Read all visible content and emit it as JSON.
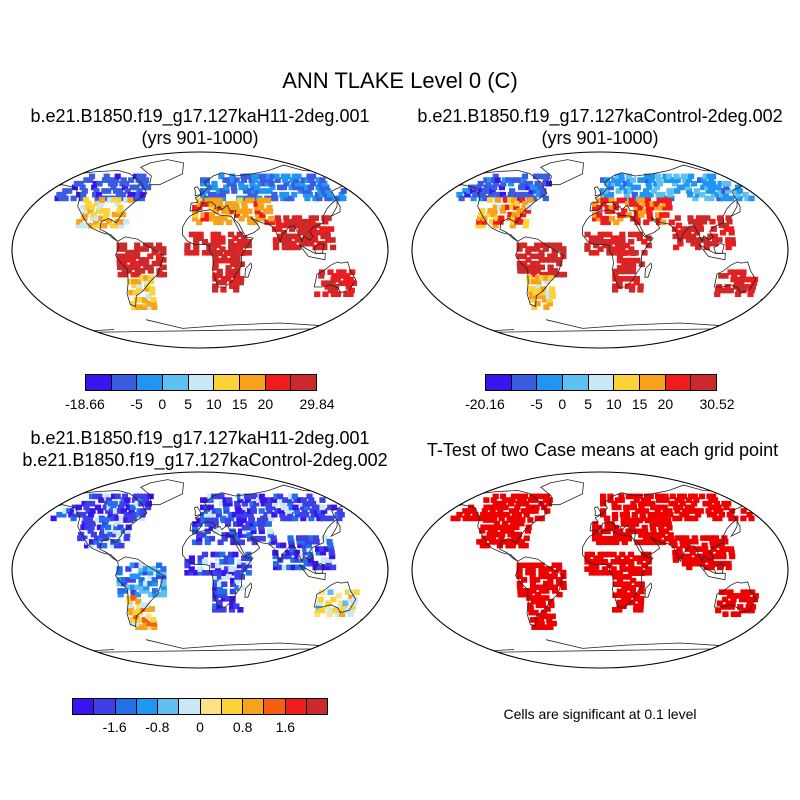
{
  "figure_title": "ANN TLAKE Level 0 (C)",
  "colors": {
    "case_scale": [
      "#3a14ef",
      "#3a5ce0",
      "#1e96f2",
      "#5ec2f0",
      "#c9e8f5",
      "#fcd23a",
      "#f7a21b",
      "#ee1c1c",
      "#cc2a2a"
    ],
    "diff_scale": [
      "#3a14ef",
      "#3e40e6",
      "#2470e8",
      "#1e96f2",
      "#62bdf0",
      "#c9e8f5",
      "#fde283",
      "#fcd23a",
      "#f7a21b",
      "#f45f12",
      "#ee1c1c",
      "#cc2a2a"
    ],
    "significant": "#ee0000",
    "land_outline": "#222222"
  },
  "panels": [
    {
      "id": "case1",
      "title_line1": "b.e21.B1850.f19_g17.127kaH11-2deg.001",
      "title_line2": "(yrs 901-1000)",
      "colorbar": {
        "labels": [
          "-18.66",
          "-5",
          "0",
          "5",
          "10",
          "15",
          "20",
          "29.84"
        ]
      }
    },
    {
      "id": "case2",
      "title_line1": "b.e21.B1850.f19_g17.127kaControl-2deg.002",
      "title_line2": "(yrs 901-1000)",
      "colorbar": {
        "labels": [
          "-20.16",
          "-5",
          "0",
          "5",
          "10",
          "15",
          "20",
          "30.52"
        ]
      }
    },
    {
      "id": "difference",
      "title_line1": "b.e21.B1850.f19_g17.127kaH11-2deg.001",
      "title_line2": "b.e21.B1850.f19_g17.127kaControl-2deg.002",
      "colorbar": {
        "labels": [
          "-1.6",
          "-0.8",
          "0",
          "0.8",
          "1.6"
        ]
      }
    },
    {
      "id": "ttest",
      "title_line1": "T-Test of two Case means at each grid point",
      "note": "Cells are significant at 0.1 level"
    }
  ],
  "chart_data": [
    {
      "type": "heatmap",
      "title": "b.e21.B1850.f19_g17.127kaH11-2deg.001 (yrs 901-1000)",
      "projection": "Robinson",
      "variable": "ANN TLAKE Level 0 (C)",
      "value_range": [
        -18.66,
        29.84
      ],
      "colorbar_levels": [
        -18.66,
        -5,
        0,
        5,
        10,
        15,
        20,
        29.84
      ],
      "regions": [
        {
          "region": "Canada / Alaska",
          "value": -12
        },
        {
          "region": "Northern Eurasia",
          "value": -8
        },
        {
          "region": "United States",
          "value": 10
        },
        {
          "region": "Southeastern US",
          "value": 17
        },
        {
          "region": "Mediterranean / Middle East",
          "value": 18
        },
        {
          "region": "Sahel / Tropical Africa",
          "value": 26
        },
        {
          "region": "Amazon / Tropical S. America",
          "value": 27
        },
        {
          "region": "India / SE Asia",
          "value": 26
        },
        {
          "region": "Australia",
          "value": 24
        },
        {
          "region": "Southern S. America",
          "value": 12
        }
      ]
    },
    {
      "type": "heatmap",
      "title": "b.e21.B1850.f19_g17.127kaControl-2deg.002 (yrs 901-1000)",
      "projection": "Robinson",
      "variable": "ANN TLAKE Level 0 (C)",
      "value_range": [
        -20.16,
        30.52
      ],
      "colorbar_levels": [
        -20.16,
        -5,
        0,
        5,
        10,
        15,
        20,
        30.52
      ],
      "regions": [
        {
          "region": "Canada / Alaska",
          "value": -6
        },
        {
          "region": "Northern Eurasia",
          "value": -2
        },
        {
          "region": "United States",
          "value": 14
        },
        {
          "region": "Southeastern US",
          "value": 20
        },
        {
          "region": "Mediterranean / Middle East",
          "value": 20
        },
        {
          "region": "Sahel / Tropical Africa",
          "value": 27
        },
        {
          "region": "Amazon / Tropical S. America",
          "value": 28
        },
        {
          "region": "India / SE Asia",
          "value": 27
        },
        {
          "region": "Australia",
          "value": 25
        },
        {
          "region": "Southern S. America",
          "value": 14
        }
      ]
    },
    {
      "type": "heatmap",
      "title": "b.e21.B1850.f19_g17.127kaH11-2deg.001 - b.e21.B1850.f19_g17.127kaControl-2deg.002",
      "projection": "Robinson",
      "colorbar_levels": [
        -2.0,
        -1.6,
        -1.2,
        -0.8,
        -0.4,
        0,
        0.4,
        0.8,
        1.2,
        1.6,
        2.0
      ],
      "regions": [
        {
          "region": "North America",
          "value": -2.0
        },
        {
          "region": "Eurasia",
          "value": -2.0
        },
        {
          "region": "Tropical S. America",
          "value": -1.4
        },
        {
          "region": "Africa",
          "value": -1.6
        },
        {
          "region": "Southern S. America",
          "value": 0.9
        },
        {
          "region": "Australia",
          "value": 0.2
        }
      ]
    },
    {
      "type": "heatmap",
      "title": "T-Test of two Case means at each grid point",
      "projection": "Robinson",
      "significance_level": 0.1,
      "regions": [
        {
          "region": "North America",
          "significant": true
        },
        {
          "region": "Eurasia",
          "significant": true
        },
        {
          "region": "South America",
          "significant": true
        },
        {
          "region": "Africa",
          "significant": true
        },
        {
          "region": "Australia",
          "significant": true
        }
      ]
    }
  ]
}
